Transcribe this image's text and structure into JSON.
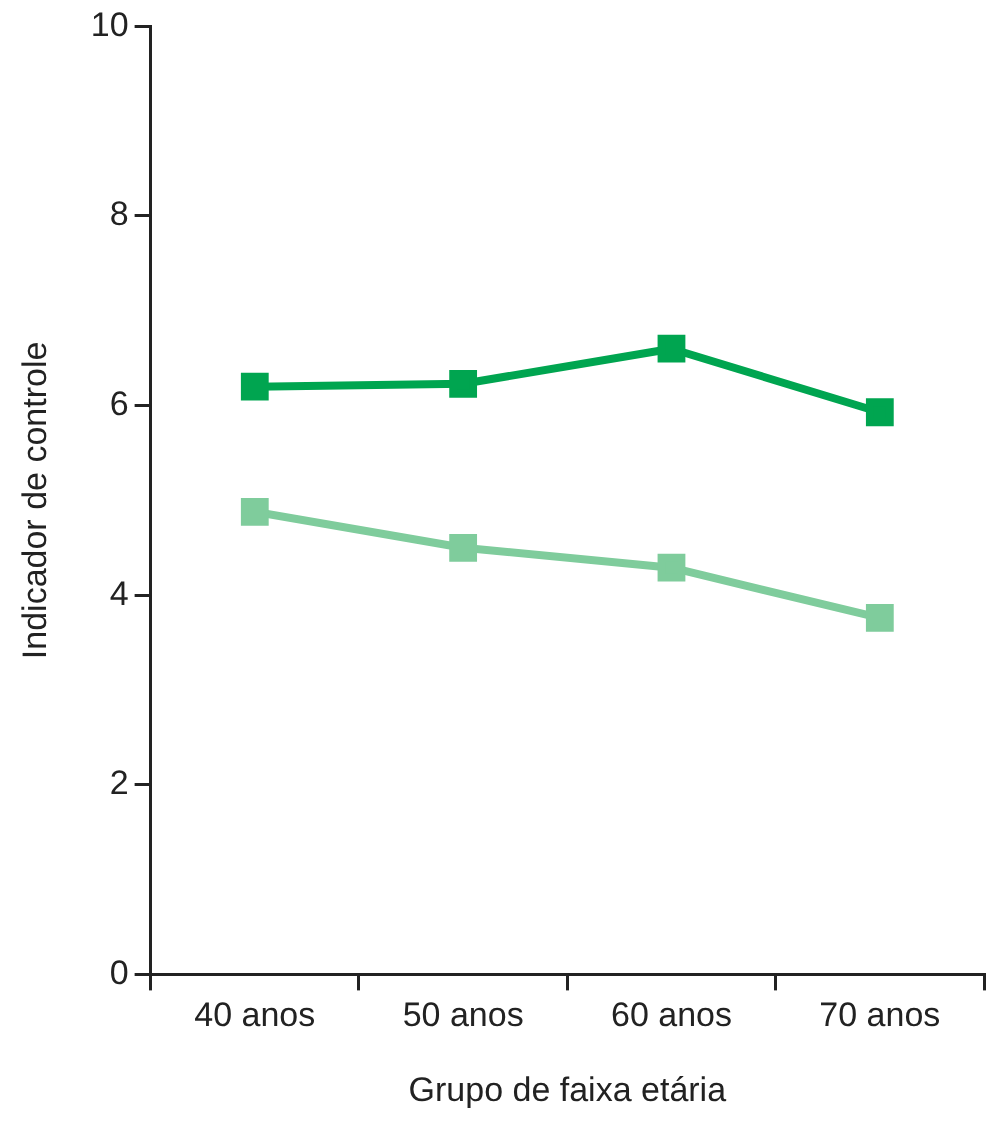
{
  "chart_data": {
    "type": "line",
    "xlabel": "Grupo de faixa etária",
    "ylabel": "Indicador de controle",
    "categories": [
      "40 anos",
      "50 anos",
      "60 anos",
      "70 anos"
    ],
    "series": [
      {
        "color": "#00a550",
        "values": [
          6.2,
          6.23,
          6.6,
          5.93
        ]
      },
      {
        "color": "#7fcc9c",
        "values": [
          4.88,
          4.5,
          4.29,
          3.76
        ]
      }
    ],
    "ylim": [
      0,
      10
    ],
    "yticks": [
      0,
      2,
      4,
      6,
      8,
      10
    ],
    "grid": false,
    "legend": false,
    "marker": "square",
    "line_style": "solid"
  }
}
